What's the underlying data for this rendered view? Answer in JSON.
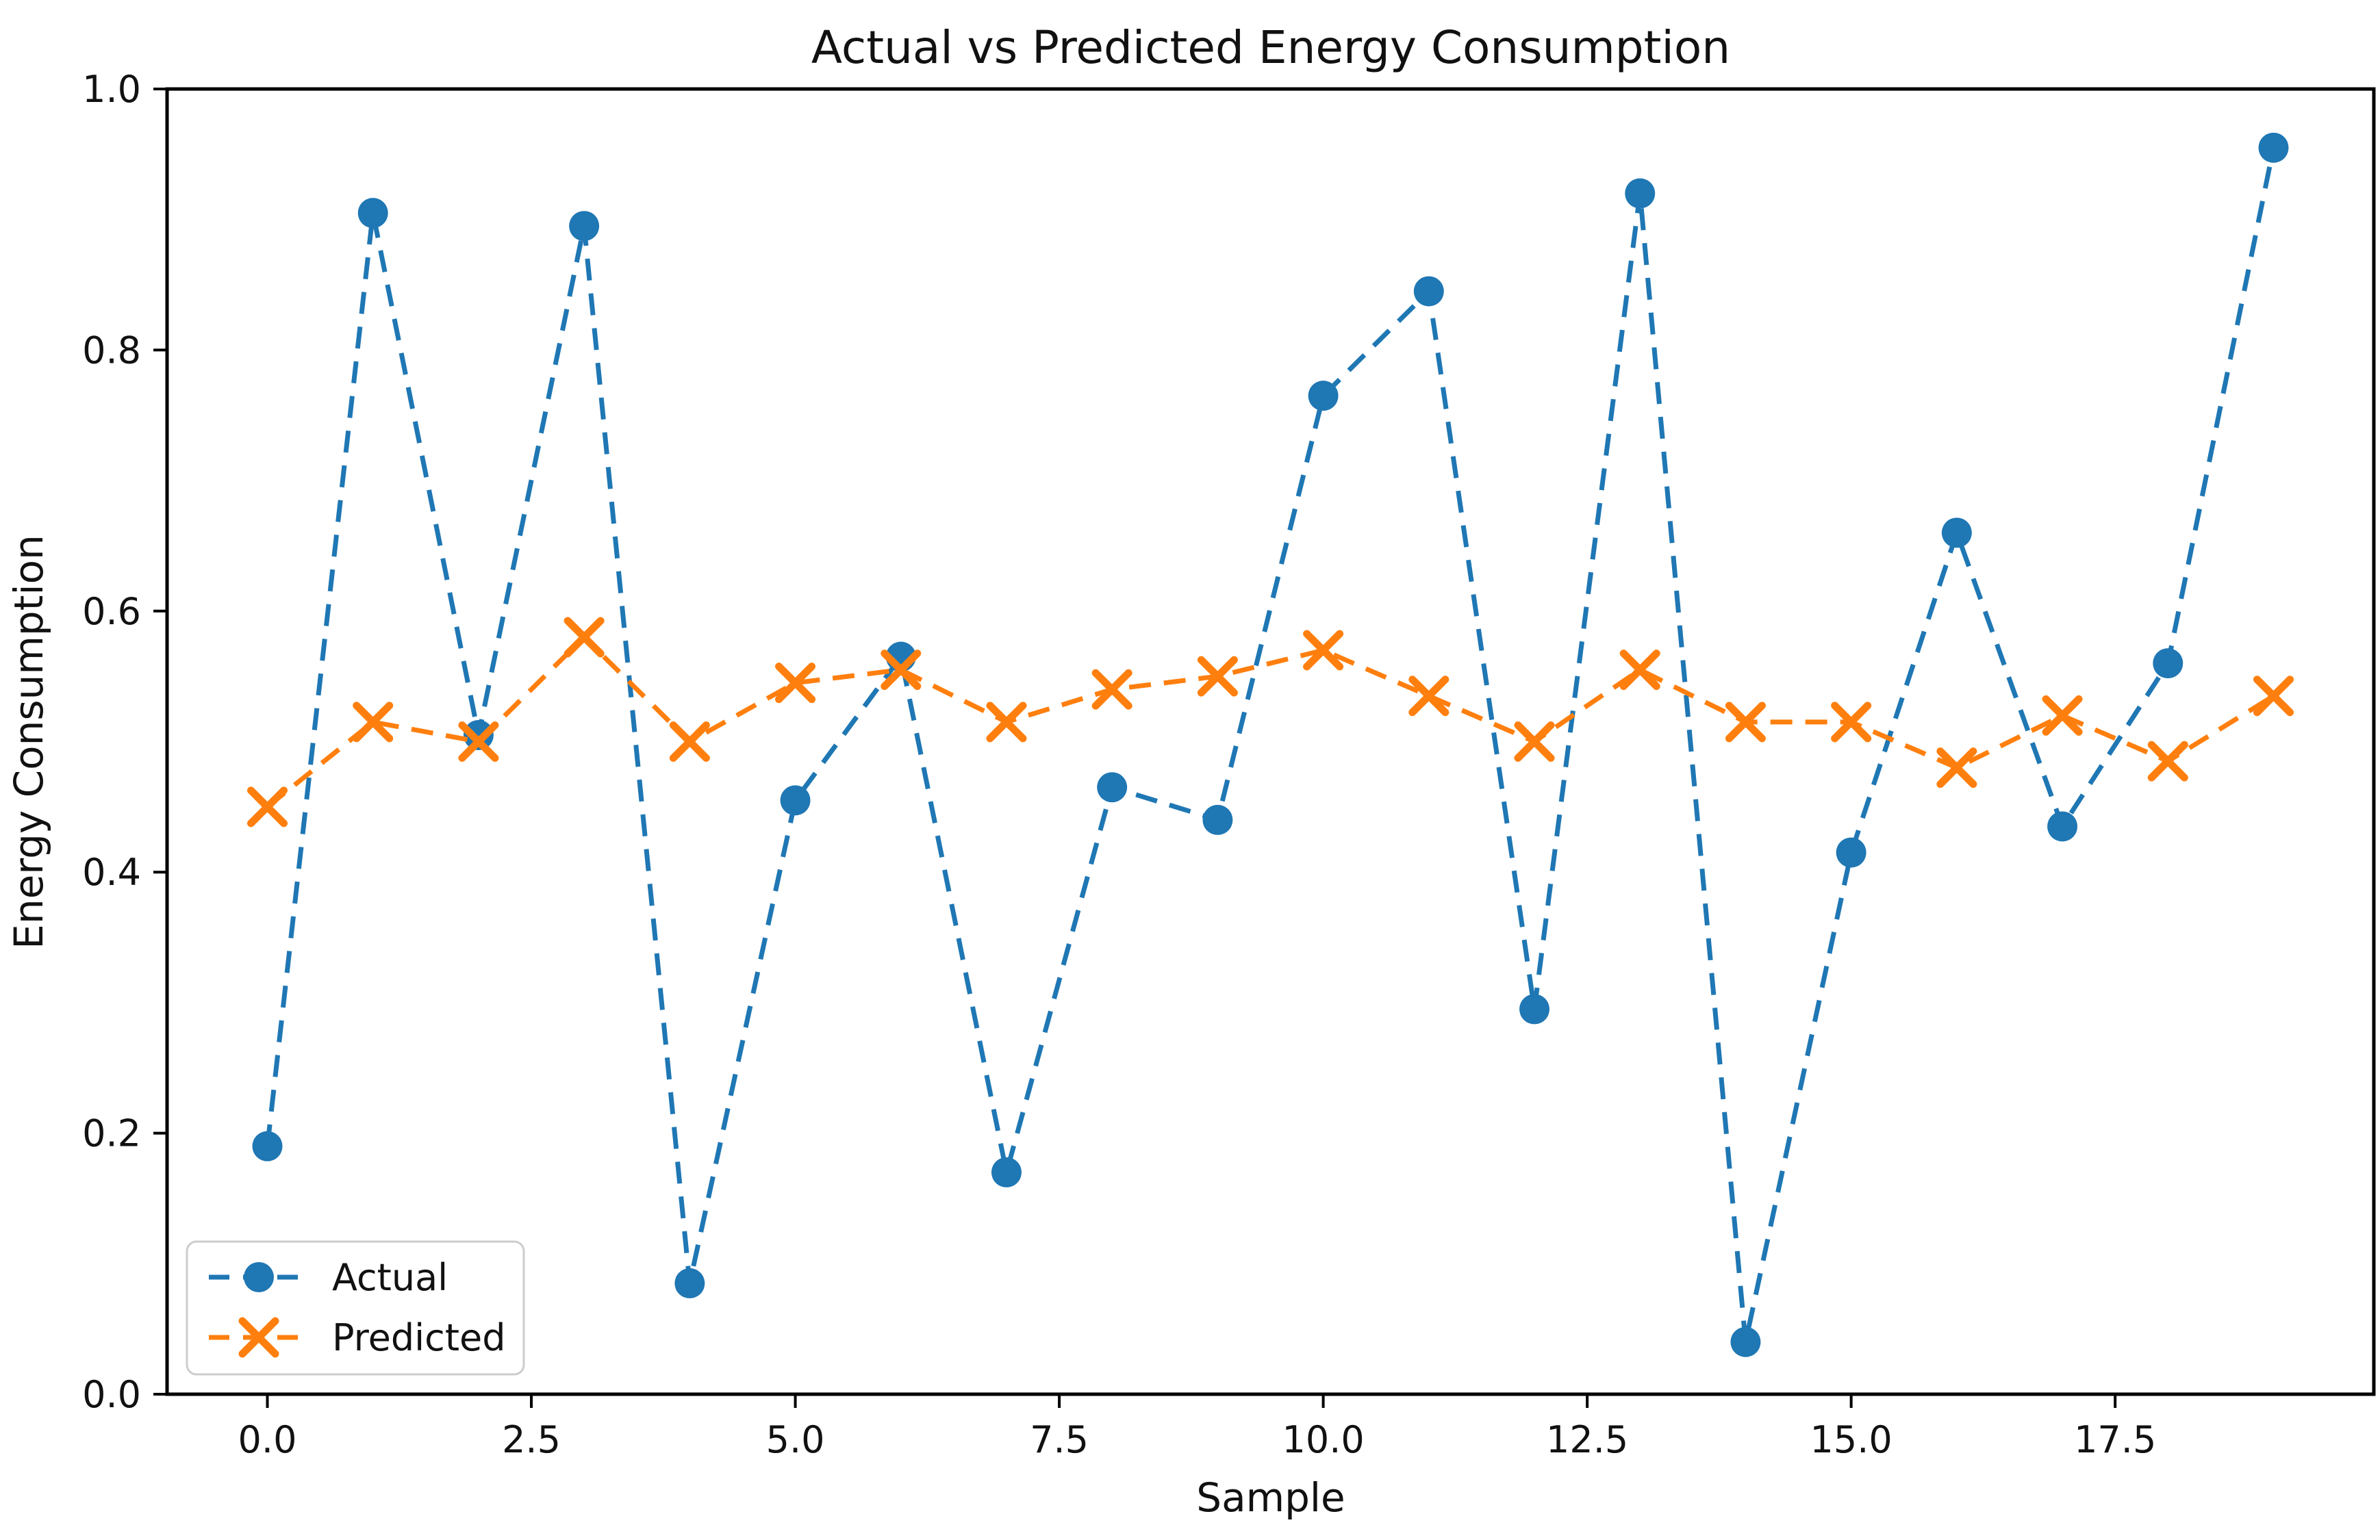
{
  "chart_data": {
    "type": "line",
    "title": "Actual vs Predicted Energy Consumption",
    "xlabel": "Sample",
    "ylabel": "Energy Consumption",
    "x": [
      0,
      1,
      2,
      3,
      4,
      5,
      6,
      7,
      8,
      9,
      10,
      11,
      12,
      13,
      14,
      15,
      16,
      17,
      18,
      19
    ],
    "series": [
      {
        "name": "Actual",
        "color": "#1f77b4",
        "marker": "circle",
        "linestyle": "dashed",
        "values": [
          0.19,
          0.905,
          0.505,
          0.895,
          0.085,
          0.455,
          0.565,
          0.17,
          0.465,
          0.44,
          0.765,
          0.845,
          0.295,
          0.92,
          0.04,
          0.415,
          0.66,
          0.435,
          0.56,
          0.955
        ]
      },
      {
        "name": "Predicted",
        "color": "#ff7f0e",
        "marker": "x",
        "linestyle": "dashed",
        "values": [
          0.45,
          0.515,
          0.5,
          0.58,
          0.5,
          0.545,
          0.555,
          0.515,
          0.54,
          0.55,
          0.57,
          0.535,
          0.5,
          0.555,
          0.515,
          0.515,
          0.48,
          0.52,
          0.485,
          0.535
        ]
      }
    ],
    "xlim": [
      -0.95,
      19.95
    ],
    "ylim": [
      0.0,
      1.0
    ],
    "x_ticks": [
      0.0,
      2.5,
      5.0,
      7.5,
      10.0,
      12.5,
      15.0,
      17.5
    ],
    "x_tick_labels": [
      "0.0",
      "2.5",
      "5.0",
      "7.5",
      "10.0",
      "12.5",
      "15.0",
      "17.5"
    ],
    "y_ticks": [
      0.0,
      0.2,
      0.4,
      0.6,
      0.8,
      1.0
    ],
    "y_tick_labels": [
      "0.0",
      "0.2",
      "0.4",
      "0.6",
      "0.8",
      "1.0"
    ],
    "grid": false,
    "legend_position": "lower left",
    "legend": [
      "Actual",
      "Predicted"
    ],
    "colors": {
      "actual": "#1f77b4",
      "predicted": "#ff7f0e",
      "spine": "#000000",
      "text": "#111111",
      "legend_border": "#cccccc",
      "background": "#ffffff"
    }
  }
}
